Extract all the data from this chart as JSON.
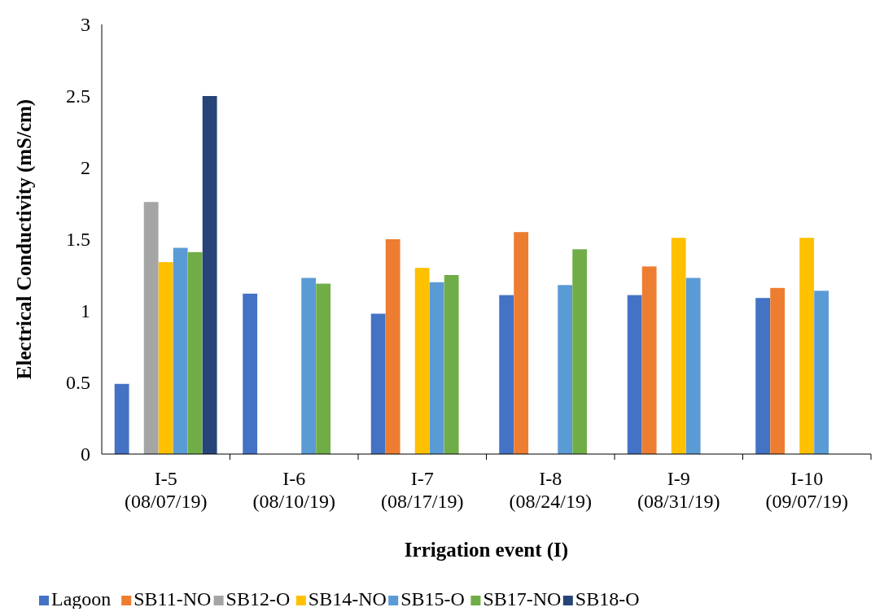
{
  "chart_data": {
    "type": "bar",
    "xlabel": "Irrigation event (I)",
    "ylabel": "Electrical Conductivity (mS/cm)",
    "categories": [
      "I-5\n(08/07/19)",
      "I-6\n(08/10/19)",
      "I-7\n(08/17/19)",
      "I-8\n(08/24/19)",
      "I-9\n(08/31/19)",
      "I-10\n(09/07/19)"
    ],
    "series": [
      {
        "name": "Lagoon",
        "color": "#4472c4",
        "values": [
          0.49,
          1.12,
          0.98,
          1.11,
          1.11,
          1.09
        ]
      },
      {
        "name": "SB11-NO",
        "color": "#ed7d31",
        "values": [
          null,
          null,
          1.5,
          1.55,
          1.31,
          1.16
        ]
      },
      {
        "name": "SB12-O",
        "color": "#a5a5a5",
        "values": [
          1.76,
          null,
          null,
          null,
          null,
          null
        ]
      },
      {
        "name": "SB14-NO",
        "color": "#ffc000",
        "values": [
          1.34,
          null,
          1.3,
          null,
          1.51,
          1.51
        ]
      },
      {
        "name": "SB15-O",
        "color": "#5b9bd5",
        "values": [
          1.44,
          1.23,
          1.2,
          1.18,
          1.23,
          1.14
        ]
      },
      {
        "name": "SB17-NO",
        "color": "#70ad47",
        "values": [
          1.41,
          1.19,
          1.25,
          1.43,
          null,
          null
        ]
      },
      {
        "name": "SB18-O",
        "color": "#264478",
        "values": [
          2.5,
          null,
          null,
          null,
          null,
          null
        ]
      }
    ],
    "ylim": [
      0,
      3
    ],
    "yticks": [
      0,
      0.5,
      1,
      1.5,
      2,
      2.5,
      3
    ],
    "legend": "bottom"
  }
}
